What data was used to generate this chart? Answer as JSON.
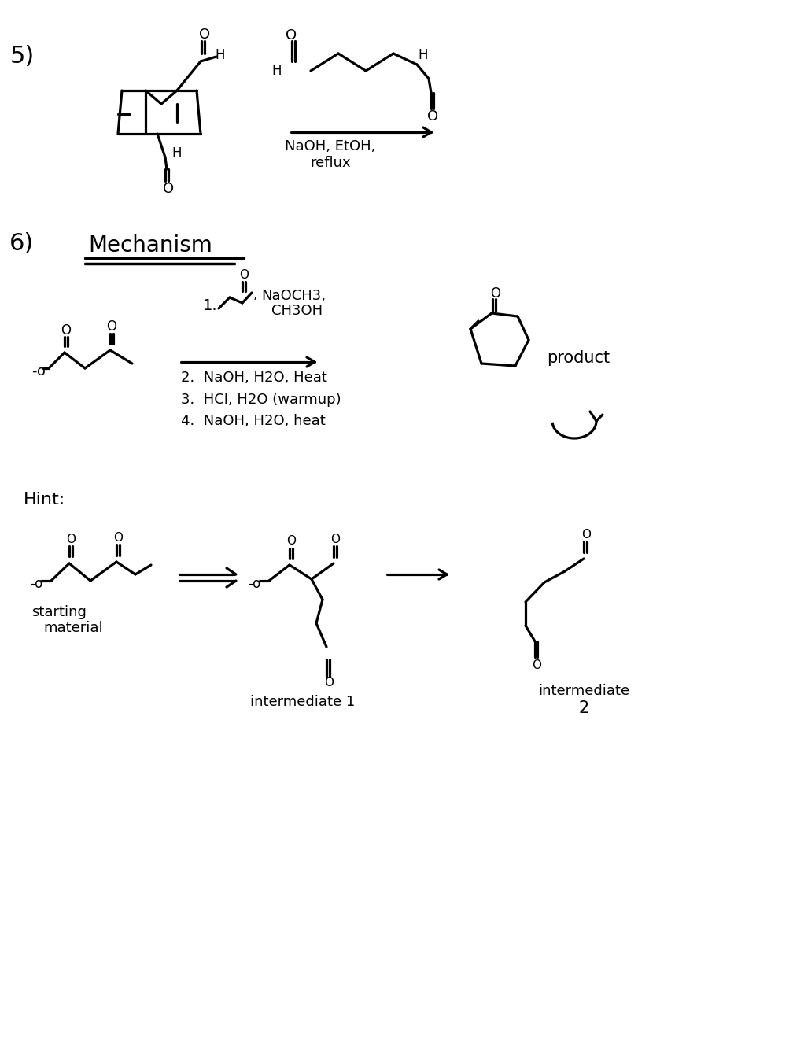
{
  "figsize": [
    10.22,
    13.42
  ],
  "dpi": 100,
  "lw": 2.3,
  "bg": "white",
  "sec5_label": "5)",
  "sec6_label": "6)",
  "mechanism": "Mechanism",
  "reagent_top1": "NaOH, EtOH,",
  "reagent_top2": "reflux",
  "step1_num": "1.",
  "step1_r1": "NaOCH3,",
  "step1_r2": "CH3OH",
  "step2": "2.  NaOH, H2O, Heat",
  "step3": "3.  HCl, H2O (warmup)",
  "step4": "4.  NaOH, H2O, heat",
  "product_lbl": "product",
  "hint_lbl": "Hint:",
  "sm_lbl1": "starting",
  "sm_lbl2": "material",
  "int1_lbl": "intermediate 1",
  "int2_lbl1": "intermediate",
  "int2_lbl2": "2"
}
